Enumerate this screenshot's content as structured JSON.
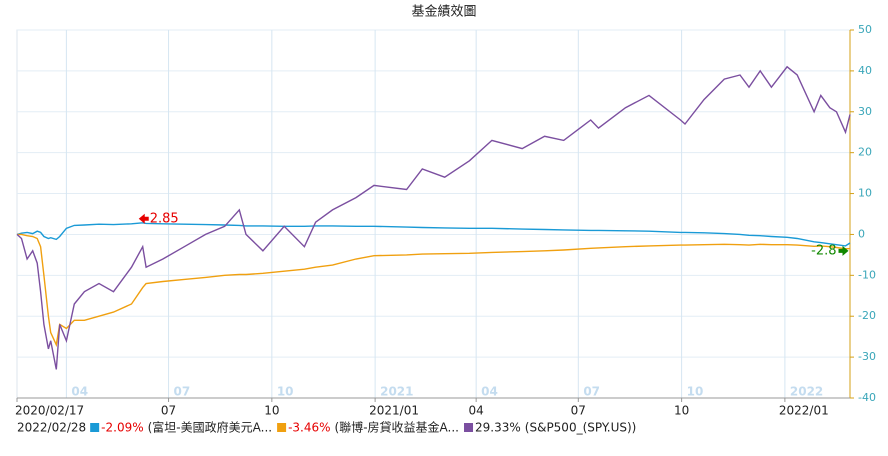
{
  "chart_data": {
    "type": "line",
    "title": "基金績效圖",
    "y_axis_position": "right",
    "ylim": [
      -40,
      50
    ],
    "yticks": [
      -40,
      -30,
      -20,
      -10,
      0,
      10,
      20,
      30,
      40,
      50
    ],
    "xlim": [
      "2020/02/17",
      "2022/02/28"
    ],
    "xticks": [
      "2020/02/17",
      {
        "value": "2020/07/01",
        "label": "07"
      },
      {
        "value": "2020/10/01",
        "label": "10"
      },
      {
        "value": "2021/01/01",
        "label": "2021/01"
      },
      {
        "value": "2021/04/01",
        "label": "04"
      },
      {
        "value": "2021/07/01",
        "label": "07"
      },
      {
        "value": "2021/10/01",
        "label": "10"
      },
      {
        "value": "2022/01/01",
        "label": "2022/01"
      }
    ],
    "period_labels": [
      {
        "value": "2020/04/01",
        "label": "04"
      },
      {
        "value": "2020/07/01",
        "label": "07"
      },
      {
        "value": "2020/10/01",
        "label": "10"
      },
      {
        "value": "2021/01/01",
        "label": "2021"
      },
      {
        "value": "2021/04/01",
        "label": "04"
      },
      {
        "value": "2021/07/01",
        "label": "07"
      },
      {
        "value": "2021/10/01",
        "label": "10"
      },
      {
        "value": "2022/01/01",
        "label": "2022"
      }
    ],
    "grid": true,
    "legend_date": "2022/02/28",
    "x": [
      "2020/02/17",
      "2020/02/21",
      "2020/02/26",
      "2020/03/02",
      "2020/03/06",
      "2020/03/09",
      "2020/03/12",
      "2020/03/16",
      "2020/03/18",
      "2020/03/23",
      "2020/03/26",
      "2020/04/01",
      "2020/04/08",
      "2020/04/17",
      "2020/04/30",
      "2020/05/13",
      "2020/05/29",
      "2020/06/08",
      "2020/06/11",
      "2020/06/26",
      "2020/07/15",
      "2020/08/03",
      "2020/08/20",
      "2020/09/02",
      "2020/09/08",
      "2020/09/23",
      "2020/10/12",
      "2020/10/30",
      "2020/11/09",
      "2020/11/24",
      "2020/12/15",
      "2020/12/31",
      "2021/01/29",
      "2021/02/12",
      "2021/03/04",
      "2021/03/26",
      "2021/04/15",
      "2021/05/12",
      "2021/06/01",
      "2021/06/18",
      "2021/07/12",
      "2021/07/19",
      "2021/08/12",
      "2021/09/02",
      "2021/09/30",
      "2021/10/04",
      "2021/10/21",
      "2021/11/08",
      "2021/11/22",
      "2021/11/30",
      "2021/12/10",
      "2021/12/20",
      "2022/01/03",
      "2022/01/12",
      "2022/01/27",
      "2022/02/02",
      "2022/02/10",
      "2022/02/16",
      "2022/02/24",
      "2022/02/28"
    ],
    "series": [
      {
        "name": "(富坦-美國政府美元A...",
        "color": "#1a9ad6",
        "return": -2.09,
        "return_label": "-2.09%",
        "values": [
          0,
          0.3,
          0.5,
          0.2,
          0.8,
          0.5,
          -0.5,
          -1,
          -0.8,
          -1.2,
          -0.5,
          1.5,
          2.2,
          2.3,
          2.5,
          2.4,
          2.6,
          2.85,
          2.7,
          2.6,
          2.5,
          2.4,
          2.3,
          2.2,
          2.1,
          2.1,
          2.0,
          2.0,
          2.1,
          2.1,
          2.0,
          2.0,
          1.8,
          1.7,
          1.6,
          1.5,
          1.5,
          1.3,
          1.2,
          1.1,
          1.0,
          1.0,
          0.9,
          0.8,
          0.5,
          0.5,
          0.4,
          0.2,
          0.0,
          -0.2,
          -0.3,
          -0.5,
          -0.7,
          -1.0,
          -1.8,
          -2.0,
          -2.3,
          -2.5,
          -2.8,
          -2.09
        ]
      },
      {
        "name": "(聯博-房貸收益基金A...",
        "color": "#f0a010",
        "return": -3.46,
        "return_label": "-3.46%",
        "values": [
          0,
          0,
          -0.3,
          -0.5,
          -1,
          -3,
          -10,
          -20,
          -24,
          -27,
          -22,
          -23,
          -21,
          -21,
          -20,
          -19,
          -17,
          -13,
          -12,
          -11.5,
          -11,
          -10.5,
          -10,
          -9.8,
          -9.8,
          -9.5,
          -9,
          -8.5,
          -8,
          -7.5,
          -6,
          -5.2,
          -5,
          -4.8,
          -4.7,
          -4.6,
          -4.4,
          -4.2,
          -4,
          -3.8,
          -3.4,
          -3.3,
          -3,
          -2.8,
          -2.6,
          -2.6,
          -2.5,
          -2.4,
          -2.5,
          -2.6,
          -2.4,
          -2.5,
          -2.5,
          -2.6,
          -2.9,
          -2.8,
          -3.0,
          -3.2,
          -3.5,
          -3.46
        ]
      },
      {
        "name": "(S&P500_(SPY.US))",
        "color": "#7b4fa0",
        "return": 29.33,
        "return_label": "29.33%",
        "values": [
          0,
          -1,
          -6,
          -4,
          -7,
          -14,
          -22,
          -28,
          -26,
          -33,
          -22,
          -26,
          -17,
          -14,
          -12,
          -14,
          -8,
          -3,
          -8,
          -6,
          -3,
          0,
          2,
          6,
          0,
          -4,
          2,
          -3,
          3,
          6,
          9,
          12,
          11,
          16,
          14,
          18,
          23,
          21,
          24,
          23,
          28,
          26,
          31,
          34,
          28,
          27,
          33,
          38,
          39,
          36,
          40,
          36,
          41,
          39,
          30,
          34,
          31,
          30,
          25,
          29.33
        ]
      }
    ],
    "annotations": [
      {
        "x": "2020/06/08",
        "value": 2.85,
        "color": "#e60000"
      },
      {
        "x": "2022/02/24",
        "value": -2.8,
        "color": "#118800"
      }
    ]
  }
}
